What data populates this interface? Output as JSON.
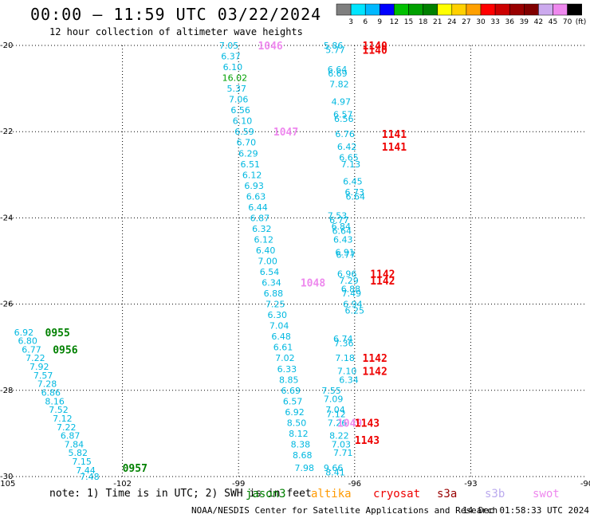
{
  "title": "00:00 – 11:59 UTC 03/22/2024",
  "subtitle": "12 hour collection of altimeter wave heights",
  "note": "note: 1) Time is in UTC; 2) SWH is in feet",
  "credit": "NOAA/NESDIS Center for Satellite Applications and Research",
  "timestamp": "14 Dec 01:58:33 UTC 2024",
  "colorbar": {
    "ticks": [
      "3",
      "6",
      "9",
      "12",
      "15",
      "18",
      "21",
      "24",
      "27",
      "30",
      "33",
      "36",
      "39",
      "42",
      "45",
      "70"
    ],
    "unit": "(ft)",
    "colors": [
      "#7f7f7f",
      "#00e5ff",
      "#00b8ff",
      "#0000ff",
      "#00c000",
      "#00a000",
      "#008000",
      "#ffff00",
      "#ffd000",
      "#ffa000",
      "#ff0000",
      "#cc0000",
      "#990000",
      "#800000",
      "#ccaaee",
      "#ee88ee",
      "#000000"
    ]
  },
  "satellites": [
    {
      "name": "jason3",
      "label": "jason3",
      "color": "#008000"
    },
    {
      "name": "altika",
      "label": "altika",
      "color": "#ff9900"
    },
    {
      "name": "cryosat",
      "label": "cryosat",
      "color": "#ee0000"
    },
    {
      "name": "s3a",
      "label": "s3a",
      "color": "#990000"
    },
    {
      "name": "s3b",
      "label": "s3b",
      "color": "#bbaaee"
    },
    {
      "name": "swot",
      "label": "swot",
      "color": "#ee88ee"
    }
  ],
  "chart_data": {
    "type": "scatter",
    "title": "00:00 – 11:59 UTC 03/22/2024",
    "subtitle": "12 hour collection of altimeter wave heights",
    "xlim": [
      -105,
      -90
    ],
    "ylim": [
      -30,
      -20
    ],
    "xticks": [
      -105,
      -102,
      -99,
      -96,
      -93,
      -90
    ],
    "yticks": [
      -20,
      -22,
      -24,
      -26,
      -28,
      -30
    ],
    "grid": true,
    "series": [
      {
        "name": "jason3",
        "color": "#00b8e0",
        "points": [
          [
            -104.55,
            -26.65,
            "6.92"
          ],
          [
            -104.45,
            -26.85,
            "6.80"
          ],
          [
            -104.35,
            -27.05,
            "6.77"
          ],
          [
            -104.25,
            -27.25,
            "7.22"
          ],
          [
            -104.15,
            -27.45,
            "7.92"
          ],
          [
            -104.05,
            -27.65,
            "7.57"
          ],
          [
            -103.95,
            -27.85,
            "7.28"
          ],
          [
            -103.85,
            -28.05,
            "6.86"
          ],
          [
            -103.75,
            -28.25,
            "8.16"
          ],
          [
            -103.65,
            -28.45,
            "7.52"
          ],
          [
            -103.55,
            -28.65,
            "7.12"
          ],
          [
            -103.45,
            -28.85,
            "7.22"
          ],
          [
            -103.35,
            -29.05,
            "6.87"
          ],
          [
            -103.25,
            -29.25,
            "7.84"
          ],
          [
            -103.15,
            -29.45,
            "5.82"
          ],
          [
            -103.05,
            -29.65,
            "7.15"
          ],
          [
            -102.95,
            -29.85,
            "7.44"
          ],
          [
            -102.85,
            -30.0,
            "7.48"
          ]
        ]
      },
      {
        "name": "swot",
        "color": "#00b8e0",
        "points": [
          [
            -99.25,
            -20.0,
            "7.05"
          ],
          [
            -99.2,
            -20.25,
            "6.37"
          ],
          [
            -99.15,
            -20.5,
            "6.10"
          ],
          [
            -99.1,
            -20.75,
            "16.02"
          ],
          [
            -99.05,
            -21.0,
            "5.37"
          ],
          [
            -99.0,
            -21.25,
            "7.06"
          ],
          [
            -98.95,
            -21.5,
            "6.56"
          ],
          [
            -98.9,
            -21.75,
            "6.10"
          ],
          [
            -98.85,
            -22.0,
            "6.59"
          ],
          [
            -98.8,
            -22.25,
            "6.70"
          ],
          [
            -98.75,
            -22.5,
            "6.29"
          ],
          [
            -98.7,
            -22.75,
            "6.51"
          ],
          [
            -98.65,
            -23.0,
            "6.12"
          ],
          [
            -98.6,
            -23.25,
            "6.93"
          ],
          [
            -98.55,
            -23.5,
            "6.63"
          ],
          [
            -98.5,
            -23.75,
            "6.44"
          ],
          [
            -98.45,
            -24.0,
            "6.87"
          ],
          [
            -98.4,
            -24.25,
            "6.32"
          ],
          [
            -98.35,
            -24.5,
            "6.12"
          ],
          [
            -98.3,
            -24.75,
            "6.40"
          ],
          [
            -98.25,
            -25.0,
            "7.00"
          ],
          [
            -98.2,
            -25.25,
            "6.54"
          ],
          [
            -98.15,
            -25.5,
            "6.34"
          ],
          [
            -98.1,
            -25.75,
            "6.88"
          ],
          [
            -98.05,
            -26.0,
            "7.25"
          ],
          [
            -98.0,
            -26.25,
            "6.30"
          ],
          [
            -97.95,
            -26.5,
            "7.04"
          ],
          [
            -97.9,
            -26.75,
            "6.48"
          ],
          [
            -97.85,
            -27.0,
            "6.61"
          ],
          [
            -97.8,
            -27.25,
            "7.02"
          ],
          [
            -97.75,
            -27.5,
            "6.33"
          ],
          [
            -97.7,
            -27.75,
            "8.85"
          ],
          [
            -97.65,
            -28.0,
            "6.69"
          ],
          [
            -97.6,
            -28.25,
            "6.57"
          ],
          [
            -97.55,
            -28.5,
            "6.92"
          ],
          [
            -97.5,
            -28.75,
            "8.50"
          ],
          [
            -97.45,
            -29.0,
            "8.12"
          ],
          [
            -97.4,
            -29.25,
            "8.38"
          ],
          [
            -97.35,
            -29.5,
            "8.68"
          ],
          [
            -97.3,
            -29.8,
            "7.98"
          ]
        ]
      },
      {
        "name": "cryosat",
        "color": "#00b8e0",
        "points": [
          [
            -96.55,
            -20.0,
            "5.86"
          ],
          [
            -96.5,
            -20.1,
            "5.77"
          ],
          [
            -96.45,
            -20.55,
            "6.64"
          ],
          [
            -96.44,
            -20.65,
            "6.69"
          ],
          [
            -96.4,
            -20.9,
            "7.82"
          ],
          [
            -96.35,
            -21.3,
            "4.97"
          ],
          [
            -96.3,
            -21.6,
            "6.57"
          ],
          [
            -96.28,
            -21.7,
            "6.56"
          ],
          [
            -96.25,
            -22.05,
            "6.76"
          ],
          [
            -96.2,
            -22.35,
            "6.42"
          ],
          [
            -96.15,
            -22.6,
            "6.65"
          ],
          [
            -96.1,
            -22.75,
            "7.13"
          ],
          [
            -96.05,
            -23.15,
            "6.45"
          ],
          [
            -96.0,
            -23.4,
            "6.73"
          ],
          [
            -95.98,
            -23.5,
            "6.64"
          ],
          [
            -96.45,
            -23.95,
            "7.53"
          ],
          [
            -96.4,
            -24.05,
            "6.77"
          ],
          [
            -96.35,
            -24.2,
            "6.84"
          ],
          [
            -96.33,
            -24.3,
            "6.64"
          ],
          [
            -96.3,
            -24.5,
            "6.43"
          ],
          [
            -96.25,
            -24.8,
            "6.91"
          ],
          [
            -96.23,
            -24.85,
            "6.77"
          ],
          [
            -96.2,
            -25.3,
            "6.96"
          ],
          [
            -96.15,
            -25.45,
            "7.29"
          ],
          [
            -96.1,
            -25.65,
            "6.88"
          ],
          [
            -96.08,
            -25.75,
            "7.49"
          ],
          [
            -96.05,
            -26.0,
            "6.94"
          ],
          [
            -96.0,
            -26.15,
            "6.25"
          ],
          [
            -96.3,
            -26.8,
            "6.74"
          ],
          [
            -96.28,
            -26.9,
            "7.36"
          ],
          [
            -96.25,
            -27.25,
            "7.18"
          ],
          [
            -96.2,
            -27.55,
            "7.10"
          ],
          [
            -96.15,
            -27.75,
            "6.34"
          ],
          [
            -96.6,
            -28.0,
            "7.55"
          ],
          [
            -96.55,
            -28.2,
            "7.09"
          ],
          [
            -96.5,
            -28.45,
            "7.04"
          ],
          [
            -96.48,
            -28.55,
            "7.12"
          ],
          [
            -96.45,
            -28.75,
            "7.26"
          ],
          [
            -96.4,
            -29.05,
            "8.22"
          ],
          [
            -96.35,
            -29.25,
            "7.03"
          ],
          [
            -96.3,
            -29.45,
            "7.71"
          ],
          [
            -96.55,
            -29.8,
            "9.66"
          ],
          [
            -96.5,
            -29.9,
            "8.41"
          ]
        ]
      }
    ],
    "pass_times": [
      {
        "sat": "swot",
        "text": "1046",
        "x": -98.5,
        "y": -20.0
      },
      {
        "sat": "swot",
        "text": "1047",
        "x": -98.1,
        "y": -22.0
      },
      {
        "sat": "swot",
        "text": "1048",
        "x": -97.4,
        "y": -25.5
      },
      {
        "sat": "swot",
        "text": "1049",
        "x": -96.45,
        "y": -28.75
      },
      {
        "sat": "jason3",
        "text": "0955",
        "x": -104.0,
        "y": -26.65
      },
      {
        "sat": "jason3",
        "text": "0956",
        "x": -103.8,
        "y": -27.05
      },
      {
        "sat": "jason3",
        "text": "0957",
        "x": -102.0,
        "y": -29.8
      },
      {
        "sat": "cryosat",
        "text": "1140",
        "x": -95.8,
        "y": -20.0
      },
      {
        "sat": "cryosat",
        "text": "1140",
        "x": -95.8,
        "y": -20.1
      },
      {
        "sat": "cryosat",
        "text": "1141",
        "x": -95.3,
        "y": -22.05
      },
      {
        "sat": "cryosat",
        "text": "1141",
        "x": -95.3,
        "y": -22.35
      },
      {
        "sat": "cryosat",
        "text": "1142",
        "x": -95.6,
        "y": -25.3
      },
      {
        "sat": "cryosat",
        "text": "1142",
        "x": -95.6,
        "y": -25.45
      },
      {
        "sat": "cryosat",
        "text": "1142",
        "x": -95.8,
        "y": -27.25
      },
      {
        "sat": "cryosat",
        "text": "1142",
        "x": -95.8,
        "y": -27.55
      },
      {
        "sat": "cryosat",
        "text": "1143",
        "x": -96.0,
        "y": -28.75
      },
      {
        "sat": "cryosat",
        "text": "1143",
        "x": -96.0,
        "y": -29.15
      }
    ],
    "pass_time_colors": {
      "swot": "#ee88ee",
      "jason3": "#008000",
      "cryosat": "#ee0000"
    }
  }
}
